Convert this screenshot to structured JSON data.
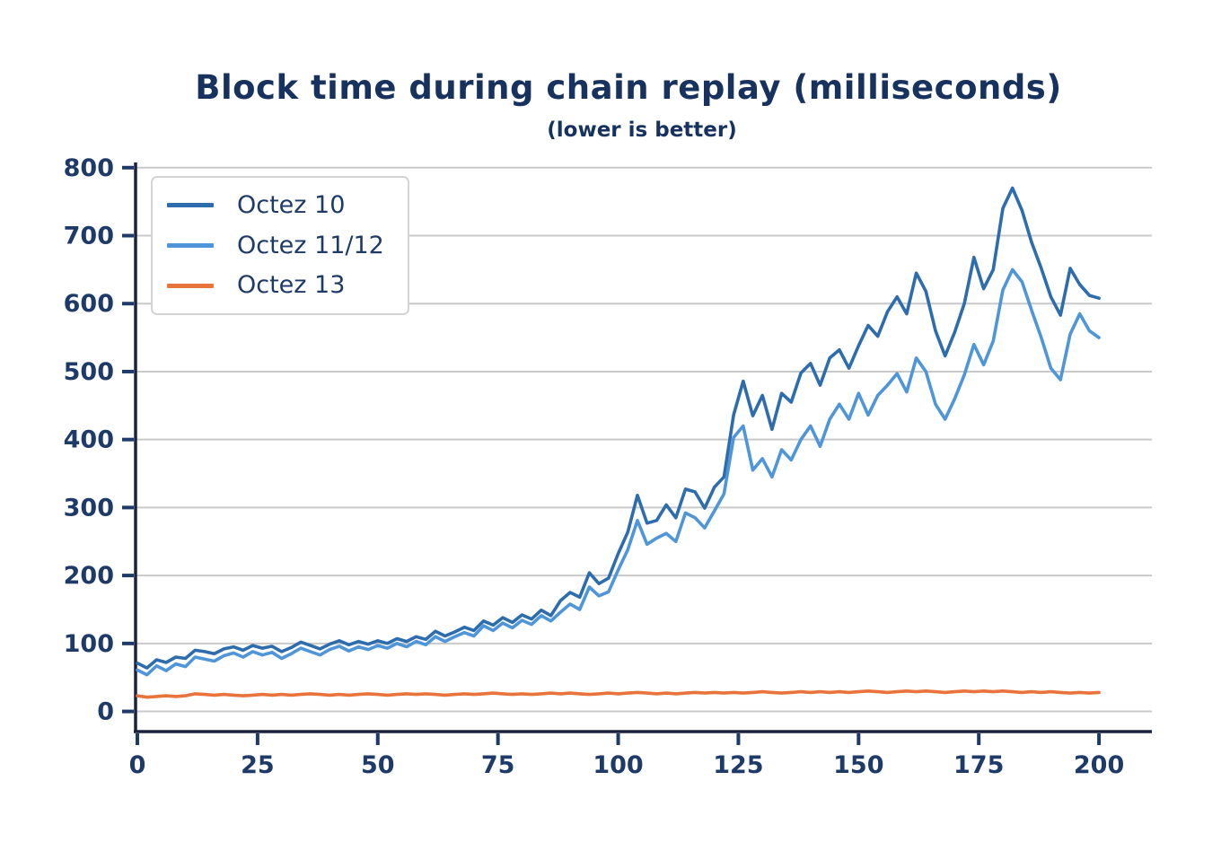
{
  "page": {
    "background": "#ffffff"
  },
  "chart_data": {
    "type": "line",
    "title": "Block time during chain replay (milliseconds)",
    "subtitle": "(lower is better)",
    "xlabel": "",
    "ylabel": "",
    "x_start": 0,
    "x_step": 2,
    "x_ticks": [
      0,
      25,
      50,
      75,
      100,
      125,
      150,
      175,
      200
    ],
    "y_ticks": [
      0,
      100,
      200,
      300,
      400,
      500,
      600,
      700,
      800
    ],
    "xlim": [
      0,
      211
    ],
    "ylim": [
      -27,
      805
    ],
    "grid": "horizontal-only",
    "legend_position": "upper-left",
    "colors": {
      "grid": "#c9c9c9",
      "spine": "#1b2240",
      "tick": "#1e3a68",
      "title": "#17325e"
    },
    "series": [
      {
        "name": "Octez 10",
        "color": "#2d6cad",
        "values": [
          71,
          64,
          76,
          72,
          80,
          78,
          90,
          88,
          85,
          92,
          95,
          90,
          97,
          93,
          96,
          88,
          94,
          102,
          97,
          92,
          99,
          104,
          98,
          103,
          99,
          104,
          100,
          107,
          103,
          110,
          106,
          118,
          111,
          117,
          124,
          119,
          133,
          127,
          138,
          131,
          142,
          136,
          149,
          141,
          163,
          175,
          168,
          204,
          188,
          196,
          232,
          264,
          318,
          277,
          281,
          304,
          285,
          327,
          323,
          299,
          330,
          345,
          436,
          486,
          435,
          465,
          415,
          468,
          455,
          498,
          512,
          480,
          520,
          532,
          505,
          538,
          568,
          552,
          588,
          610,
          585,
          645,
          618,
          560,
          523,
          558,
          600,
          668,
          622,
          650,
          740,
          770,
          737,
          690,
          652,
          610,
          583,
          652,
          628,
          612,
          608
        ]
      },
      {
        "name": "Octez 11/12",
        "color": "#4e96d9",
        "values": [
          61,
          54,
          67,
          60,
          70,
          66,
          80,
          77,
          74,
          82,
          86,
          80,
          88,
          83,
          87,
          78,
          85,
          93,
          88,
          83,
          91,
          96,
          89,
          95,
          91,
          97,
          93,
          100,
          95,
          103,
          98,
          110,
          103,
          110,
          116,
          111,
          126,
          119,
          130,
          123,
          134,
          128,
          141,
          133,
          146,
          158,
          150,
          183,
          170,
          176,
          208,
          238,
          281,
          246,
          255,
          262,
          250,
          292,
          285,
          270,
          295,
          320,
          403,
          420,
          355,
          372,
          345,
          385,
          370,
          400,
          420,
          390,
          430,
          452,
          430,
          468,
          436,
          465,
          480,
          497,
          470,
          520,
          500,
          452,
          430,
          460,
          495,
          540,
          510,
          545,
          620,
          650,
          632,
          590,
          550,
          505,
          488,
          555,
          585,
          560,
          550
        ]
      },
      {
        "name": "Octez 13",
        "color": "#e8743c",
        "values": [
          23,
          21,
          22,
          23,
          22,
          23,
          26,
          25,
          24,
          25,
          24,
          23,
          24,
          25,
          24,
          25,
          24,
          25,
          26,
          25,
          24,
          25,
          24,
          25,
          26,
          25,
          24,
          25,
          26,
          25,
          26,
          25,
          24,
          25,
          26,
          25,
          26,
          27,
          26,
          25,
          26,
          25,
          26,
          27,
          26,
          27,
          26,
          25,
          26,
          27,
          26,
          27,
          28,
          27,
          26,
          27,
          26,
          27,
          28,
          27,
          28,
          27,
          28,
          27,
          28,
          29,
          28,
          27,
          28,
          29,
          28,
          29,
          28,
          29,
          28,
          29,
          30,
          29,
          28,
          29,
          30,
          29,
          30,
          29,
          28,
          29,
          30,
          29,
          30,
          29,
          30,
          29,
          28,
          29,
          28,
          29,
          28,
          27,
          28,
          27,
          28
        ]
      }
    ]
  }
}
